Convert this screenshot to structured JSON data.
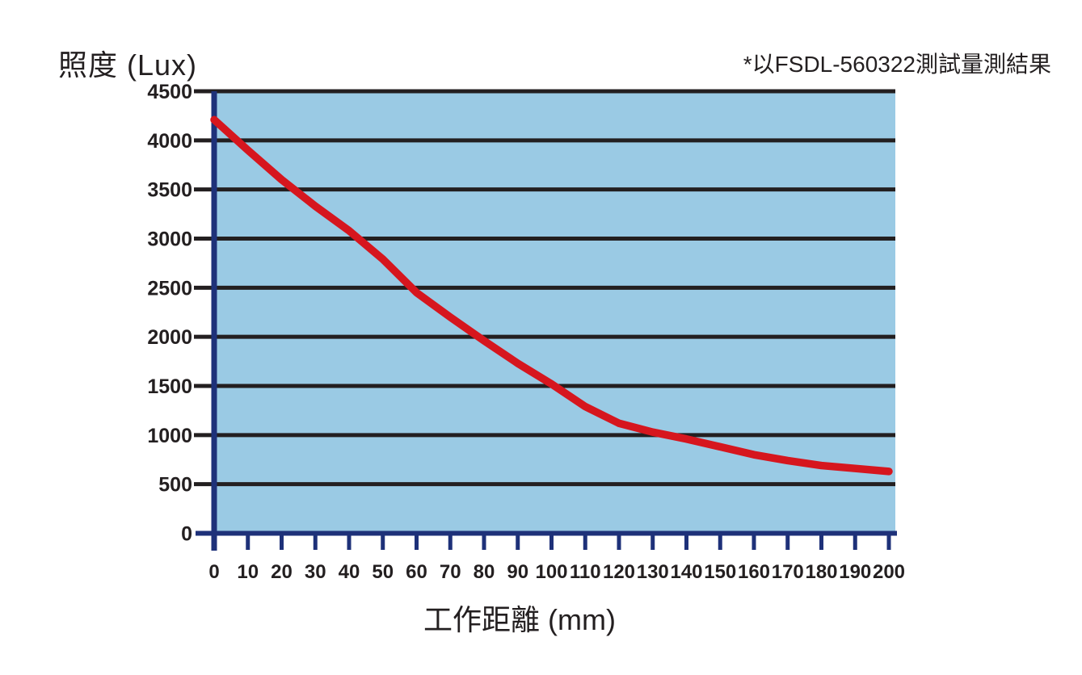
{
  "header": {
    "y_axis_title": "照度 (Lux)",
    "note": "*以FSDL-560322測試量測結果"
  },
  "colors": {
    "background": "#ffffff",
    "plot_fill": "#9acae4",
    "axis": "#1e3179",
    "gridline": "#231f20",
    "curve": "#d6161e",
    "text": "#231f20"
  },
  "chart_data": {
    "type": "line",
    "title": "",
    "xlabel": "工作距離 (mm)",
    "ylabel": "照度 (Lux)",
    "note": "*以FSDL-560322測試量測結果",
    "x": [
      0,
      10,
      20,
      30,
      40,
      50,
      60,
      70,
      80,
      90,
      100,
      110,
      120,
      130,
      140,
      150,
      160,
      170,
      180,
      190,
      200
    ],
    "series": [
      {
        "name": "照度",
        "color": "#d6161e",
        "values": [
          4210,
          3900,
          3600,
          3330,
          3080,
          2790,
          2450,
          2200,
          1960,
          1730,
          1520,
          1290,
          1120,
          1030,
          960,
          880,
          800,
          740,
          690,
          660,
          630
        ]
      }
    ],
    "xlim": [
      0,
      200
    ],
    "ylim": [
      0,
      4500
    ],
    "x_ticks": [
      0,
      10,
      20,
      30,
      40,
      50,
      60,
      70,
      80,
      90,
      100,
      110,
      120,
      130,
      140,
      150,
      160,
      170,
      180,
      190,
      200
    ],
    "y_ticks": [
      0,
      500,
      1000,
      1500,
      2000,
      2500,
      3000,
      3500,
      4000,
      4500
    ],
    "grid": "horizontal-only",
    "legend": "none"
  }
}
